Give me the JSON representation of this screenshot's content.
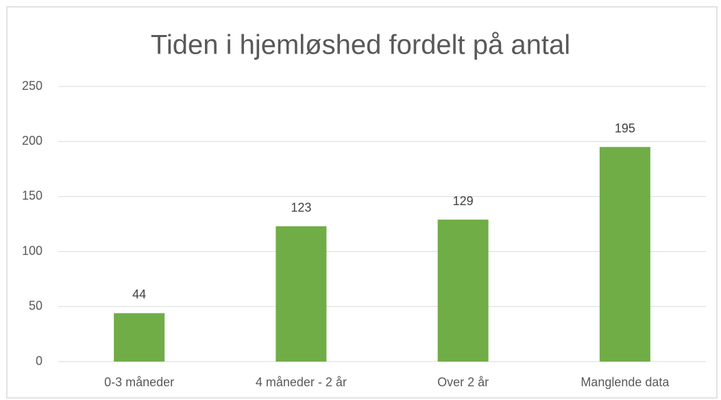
{
  "chart_data": {
    "type": "bar",
    "title": "Tiden i hjemløshed fordelt på antal",
    "categories": [
      "0-3 måneder",
      "4 måneder - 2 år",
      "Over 2 år",
      "Manglende data"
    ],
    "values": [
      44,
      123,
      129,
      195
    ],
    "color": "#70ad47",
    "ylim": [
      0,
      250
    ],
    "yticks": [
      0,
      50,
      100,
      150,
      200,
      250
    ],
    "grid": true,
    "data_labels": true
  }
}
